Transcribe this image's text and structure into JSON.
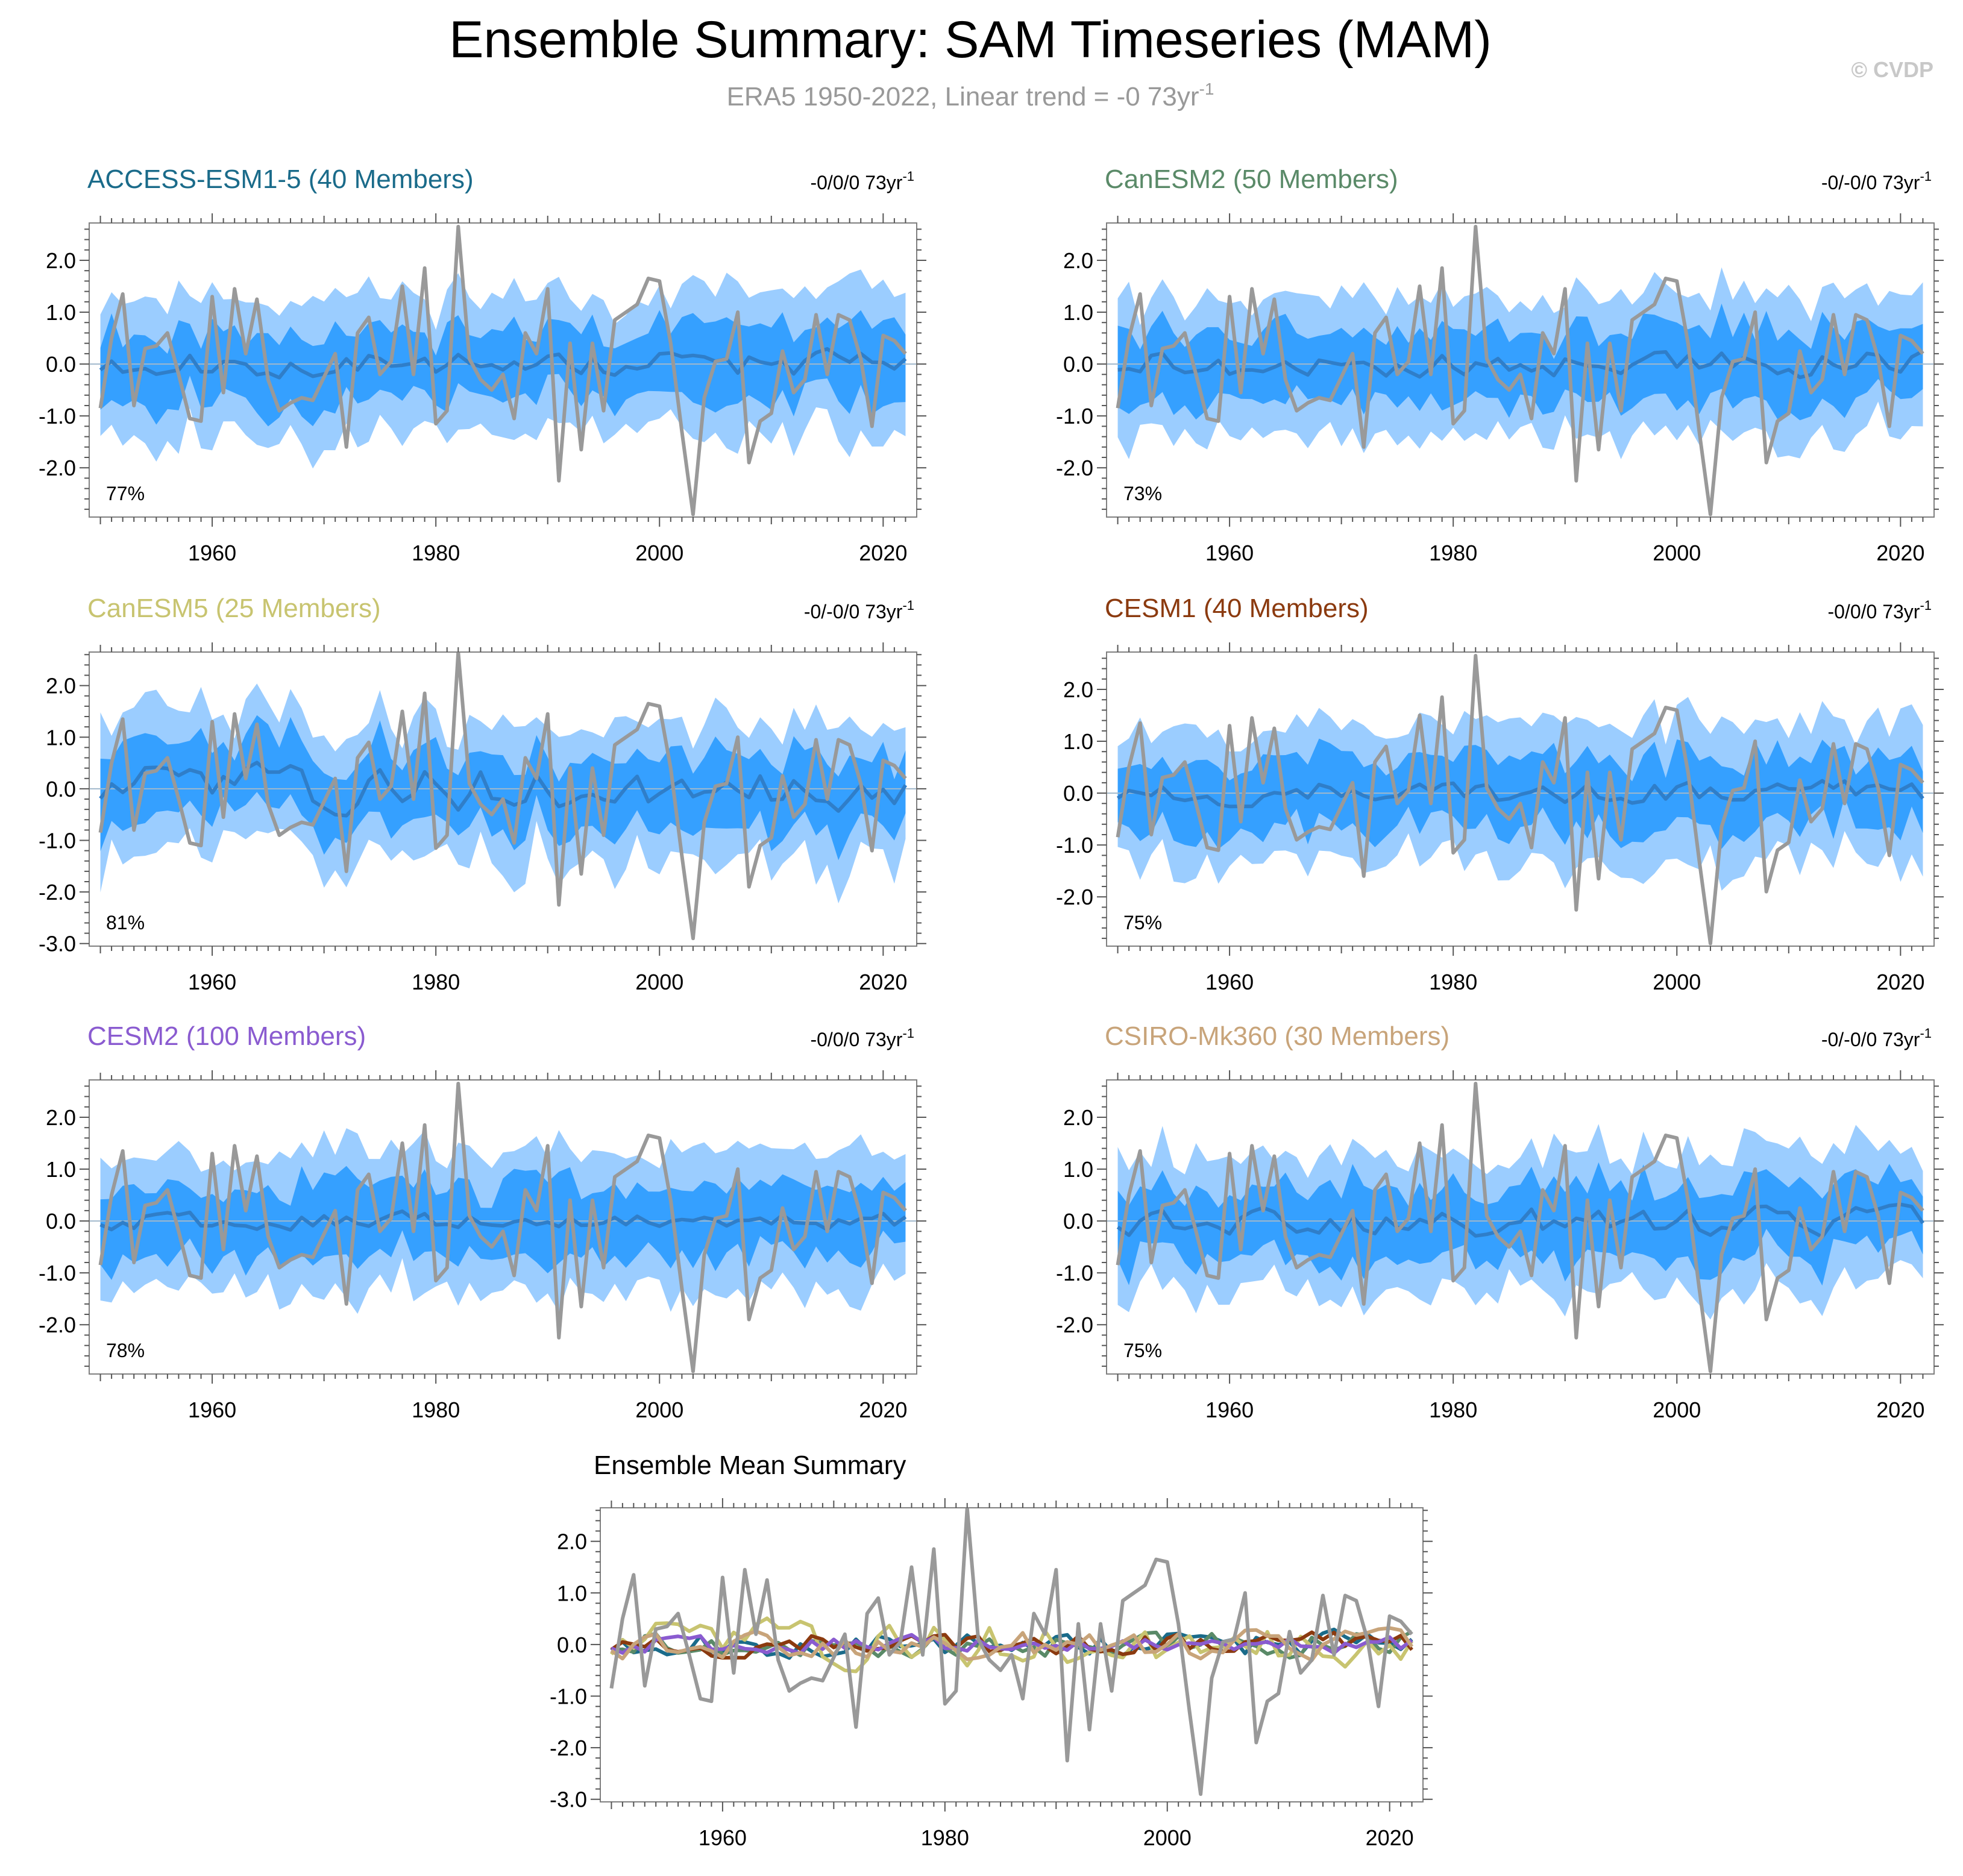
{
  "title": "Ensemble Summary: SAM Timeseries (MAM)",
  "subtitle": {
    "text": "ERA5 1950-2022, Linear trend = -0 73yr",
    "sup": "-1"
  },
  "copyright": "© CVDP",
  "colors": {
    "obs": "#999999",
    "band_outer": "#9bcdff",
    "band_inner": "#35a0ff",
    "ens_mean": "#2f7ec9",
    "zero_line": "#a0b8cc",
    "title_gray": "#999999"
  },
  "chart_data": [
    {
      "type": "area",
      "title": "ACCESS-ESM1-5 (40 Members)",
      "title_color": "#1a6b8a",
      "trend": {
        "text": "-0/0/0 73yr",
        "sup": "-1"
      },
      "percent": "77%",
      "xlim": [
        1949,
        2023
      ],
      "ylim": [
        -2.95,
        2.72
      ],
      "x_ticks": [
        "1960",
        "1980",
        "2000",
        "2020"
      ],
      "y_ticks": [
        "2.0",
        "1.0",
        "0.0",
        "-1.0",
        "-2.0"
      ],
      "series": [
        "observations",
        "ensemble mean",
        "ensemble spread"
      ]
    },
    {
      "type": "area",
      "title": "CanESM2 (50 Members)",
      "title_color": "#5a8a68",
      "trend": {
        "text": "-0/-0/0 73yr",
        "sup": "-1"
      },
      "percent": "73%",
      "xlim": [
        1949,
        2023
      ],
      "ylim": [
        -2.95,
        2.72
      ],
      "x_ticks": [
        "1960",
        "1980",
        "2000",
        "2020"
      ],
      "y_ticks": [
        "2.0",
        "1.0",
        "0.0",
        "-1.0",
        "-2.0"
      ],
      "series": [
        "observations",
        "ensemble mean",
        "ensemble spread"
      ]
    },
    {
      "type": "area",
      "title": "CanESM5 (25 Members)",
      "title_color": "#c8c470",
      "trend": {
        "text": "-0/-0/0 73yr",
        "sup": "-1"
      },
      "percent": "81%",
      "xlim": [
        1949,
        2023
      ],
      "ylim": [
        -3.05,
        2.65
      ],
      "x_ticks": [
        "1960",
        "1980",
        "2000",
        "2020"
      ],
      "y_ticks": [
        "2.0",
        "1.0",
        "0.0",
        "-1.0",
        "-2.0",
        "-3.0"
      ],
      "series": [
        "observations",
        "ensemble mean",
        "ensemble spread"
      ]
    },
    {
      "type": "area",
      "title": "CESM1 (40 Members)",
      "title_color": "#8b3a0f",
      "trend": {
        "text": "-0/0/0 73yr",
        "sup": "-1"
      },
      "percent": "75%",
      "xlim": [
        1949,
        2023
      ],
      "ylim": [
        -2.95,
        2.72
      ],
      "x_ticks": [
        "1960",
        "1980",
        "2000",
        "2020"
      ],
      "y_ticks": [
        "2.0",
        "1.0",
        "0.0",
        "-1.0",
        "-2.0"
      ],
      "series": [
        "observations",
        "ensemble mean",
        "ensemble spread"
      ]
    },
    {
      "type": "area",
      "title": "CESM2 (100 Members)",
      "title_color": "#8a5bd0",
      "trend": {
        "text": "-0/0/0 73yr",
        "sup": "-1"
      },
      "percent": "78%",
      "xlim": [
        1949,
        2023
      ],
      "ylim": [
        -2.95,
        2.72
      ],
      "x_ticks": [
        "1960",
        "1980",
        "2000",
        "2020"
      ],
      "y_ticks": [
        "2.0",
        "1.0",
        "0.0",
        "-1.0",
        "-2.0"
      ],
      "series": [
        "observations",
        "ensemble mean",
        "ensemble spread"
      ]
    },
    {
      "type": "area",
      "title": "CSIRO-Mk360 (30 Members)",
      "title_color": "#c8a47a",
      "trend": {
        "text": "-0/-0/0 73yr",
        "sup": "-1"
      },
      "percent": "75%",
      "xlim": [
        1949,
        2023
      ],
      "ylim": [
        -2.95,
        2.72
      ],
      "x_ticks": [
        "1960",
        "1980",
        "2000",
        "2020"
      ],
      "y_ticks": [
        "2.0",
        "1.0",
        "0.0",
        "-1.0",
        "-2.0"
      ],
      "series": [
        "observations",
        "ensemble mean",
        "ensemble spread"
      ]
    },
    {
      "type": "line",
      "title": "Ensemble Mean Summary",
      "title_color": "#000000",
      "xlim": [
        1949,
        2023
      ],
      "ylim": [
        -3.05,
        2.65
      ],
      "x_ticks": [
        "1960",
        "1980",
        "2000",
        "2020"
      ],
      "y_ticks": [
        "2.0",
        "1.0",
        "0.0",
        "-1.0",
        "-2.0",
        "-3.0"
      ],
      "series_colors": [
        "#999999",
        "#1a6b8a",
        "#5a8a68",
        "#c8c470",
        "#8b3a0f",
        "#8a5bd0",
        "#c8a47a"
      ]
    }
  ]
}
